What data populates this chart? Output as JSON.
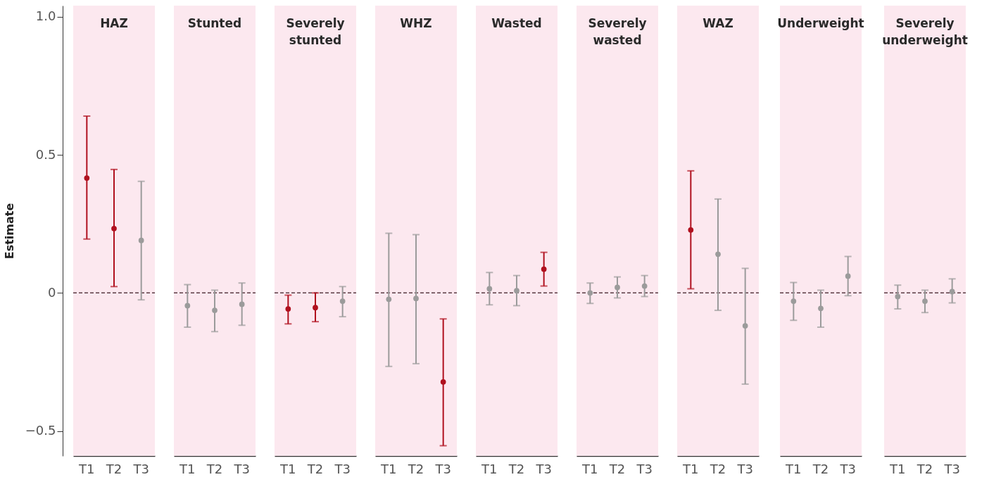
{
  "chart_data": [
    {
      "type": "scatter",
      "title": "HAZ",
      "ylabel": "Estimate",
      "categories": [
        "T1",
        "T2",
        "T3"
      ],
      "marker": "circle",
      "grid": false,
      "ylim": [
        -0.59,
        1.04
      ],
      "yticks": [
        {
          "value": 1,
          "label": "1.0"
        },
        0.5,
        0,
        {
          "value": -0.5,
          "label": "−0.5"
        }
      ],
      "series": [
        {
          "values": [
            0.416,
            0.233,
            0.19
          ],
          "errors": [
            [
              0.195,
              0.64
            ],
            [
              0.023,
              0.447
            ],
            [
              -0.025,
              0.404
            ]
          ],
          "colors": [
            "#b0101e",
            "#b0101e",
            "#9b9b9b"
          ]
        }
      ],
      "ref_lines": [
        {
          "axis": "y",
          "value": 0,
          "color": "#5a3a44",
          "line_style": "dashed"
        }
      ],
      "bands": [
        {
          "axis": "y",
          "from": -0.59,
          "to": 1.04,
          "color": "#fce8ef"
        }
      ]
    },
    {
      "type": "scatter",
      "title": "Stunted",
      "categories": [
        "T1",
        "T2",
        "T3"
      ],
      "marker": "circle",
      "grid": false,
      "tick_labels": "x",
      "ylim": [
        -0.59,
        1.04
      ],
      "series": [
        {
          "values": [
            -0.046,
            -0.063,
            -0.041
          ],
          "errors": [
            [
              -0.124,
              0.03
            ],
            [
              -0.14,
              0.01
            ],
            [
              -0.117,
              0.036
            ]
          ],
          "colors": [
            "#9b9b9b",
            "#9b9b9b",
            "#9b9b9b"
          ]
        }
      ],
      "ref_lines": [
        {
          "axis": "y",
          "value": 0,
          "color": "#5a3a44",
          "line_style": "dashed"
        }
      ],
      "bands": [
        {
          "axis": "y",
          "from": -0.59,
          "to": 1.04,
          "color": "#fce8ef"
        }
      ]
    },
    {
      "type": "scatter",
      "title": "Severely stunted",
      "categories": [
        "T1",
        "T2",
        "T3"
      ],
      "marker": "circle",
      "grid": false,
      "tick_labels": "x",
      "ylim": [
        -0.59,
        1.04
      ],
      "series": [
        {
          "values": [
            -0.058,
            -0.053,
            -0.03
          ],
          "errors": [
            [
              -0.112,
              -0.008
            ],
            [
              -0.104,
              0.0
            ],
            [
              -0.086,
              0.023
            ]
          ],
          "colors": [
            "#b0101e",
            "#b0101e",
            "#9b9b9b"
          ]
        }
      ],
      "ref_lines": [
        {
          "axis": "y",
          "value": 0,
          "color": "#5a3a44",
          "line_style": "dashed"
        }
      ],
      "bands": [
        {
          "axis": "y",
          "from": -0.59,
          "to": 1.04,
          "color": "#fce8ef"
        }
      ]
    },
    {
      "type": "scatter",
      "title": "WHZ",
      "categories": [
        "T1",
        "T2",
        "T3"
      ],
      "marker": "circle",
      "grid": false,
      "tick_labels": "x",
      "ylim": [
        -0.59,
        1.04
      ],
      "series": [
        {
          "values": [
            -0.023,
            -0.02,
            -0.322
          ],
          "errors": [
            [
              -0.266,
              0.216
            ],
            [
              -0.256,
              0.211
            ],
            [
              -0.553,
              -0.094
            ]
          ],
          "colors": [
            "#9b9b9b",
            "#9b9b9b",
            "#b0101e"
          ]
        }
      ],
      "ref_lines": [
        {
          "axis": "y",
          "value": 0,
          "color": "#5a3a44",
          "line_style": "dashed"
        }
      ],
      "bands": [
        {
          "axis": "y",
          "from": -0.59,
          "to": 1.04,
          "color": "#fce8ef"
        }
      ]
    },
    {
      "type": "scatter",
      "title": "Wasted",
      "categories": [
        "T1",
        "T2",
        "T3"
      ],
      "marker": "circle",
      "grid": false,
      "tick_labels": "x",
      "ylim": [
        -0.59,
        1.04
      ],
      "series": [
        {
          "values": [
            0.015,
            0.008,
            0.086
          ],
          "errors": [
            [
              -0.043,
              0.074
            ],
            [
              -0.046,
              0.063
            ],
            [
              0.025,
              0.147
            ]
          ],
          "colors": [
            "#9b9b9b",
            "#9b9b9b",
            "#b0101e"
          ]
        }
      ],
      "ref_lines": [
        {
          "axis": "y",
          "value": 0,
          "color": "#5a3a44",
          "line_style": "dashed"
        }
      ],
      "bands": [
        {
          "axis": "y",
          "from": -0.59,
          "to": 1.04,
          "color": "#fce8ef"
        }
      ]
    },
    {
      "type": "scatter",
      "title": "Severely wasted",
      "categories": [
        "T1",
        "T2",
        "T3"
      ],
      "marker": "circle",
      "grid": false,
      "tick_labels": "x",
      "ylim": [
        -0.59,
        1.04
      ],
      "series": [
        {
          "values": [
            0.0,
            0.02,
            0.025
          ],
          "errors": [
            [
              -0.038,
              0.036
            ],
            [
              -0.018,
              0.058
            ],
            [
              -0.013,
              0.063
            ]
          ],
          "colors": [
            "#9b9b9b",
            "#9b9b9b",
            "#9b9b9b"
          ]
        }
      ],
      "ref_lines": [
        {
          "axis": "y",
          "value": 0,
          "color": "#5a3a44",
          "line_style": "dashed"
        }
      ],
      "bands": [
        {
          "axis": "y",
          "from": -0.59,
          "to": 1.04,
          "color": "#fce8ef"
        }
      ]
    },
    {
      "type": "scatter",
      "title": "WAZ",
      "categories": [
        "T1",
        "T2",
        "T3"
      ],
      "marker": "circle",
      "grid": false,
      "tick_labels": "x",
      "ylim": [
        -0.59,
        1.04
      ],
      "series": [
        {
          "values": [
            0.228,
            0.14,
            -0.119
          ],
          "errors": [
            [
              0.015,
              0.442
            ],
            [
              -0.063,
              0.34
            ],
            [
              -0.33,
              0.089
            ]
          ],
          "colors": [
            "#b0101e",
            "#9b9b9b",
            "#9b9b9b"
          ]
        }
      ],
      "ref_lines": [
        {
          "axis": "y",
          "value": 0,
          "color": "#5a3a44",
          "line_style": "dashed"
        }
      ],
      "bands": [
        {
          "axis": "y",
          "from": -0.59,
          "to": 1.04,
          "color": "#fce8ef"
        }
      ]
    },
    {
      "type": "scatter",
      "title": "Underweight",
      "categories": [
        "T1",
        "T2",
        "T3"
      ],
      "marker": "circle",
      "grid": false,
      "tick_labels": "x",
      "ylim": [
        -0.59,
        1.04
      ],
      "series": [
        {
          "values": [
            -0.03,
            -0.056,
            0.061
          ],
          "errors": [
            [
              -0.099,
              0.038
            ],
            [
              -0.124,
              0.01
            ],
            [
              -0.01,
              0.132
            ]
          ],
          "colors": [
            "#9b9b9b",
            "#9b9b9b",
            "#9b9b9b"
          ]
        }
      ],
      "ref_lines": [
        {
          "axis": "y",
          "value": 0,
          "color": "#5a3a44",
          "line_style": "dashed"
        }
      ],
      "bands": [
        {
          "axis": "y",
          "from": -0.59,
          "to": 1.04,
          "color": "#fce8ef"
        }
      ]
    },
    {
      "type": "scatter",
      "title": "Severely underweight",
      "categories": [
        "T1",
        "T2",
        "T3"
      ],
      "marker": "circle",
      "grid": false,
      "tick_labels": "x",
      "ylim": [
        -0.59,
        1.04
      ],
      "series": [
        {
          "values": [
            -0.013,
            -0.03,
            0.005
          ],
          "errors": [
            [
              -0.058,
              0.028
            ],
            [
              -0.071,
              0.01
            ],
            [
              -0.036,
              0.051
            ]
          ],
          "colors": [
            "#9b9b9b",
            "#9b9b9b",
            "#9b9b9b"
          ]
        }
      ],
      "ref_lines": [
        {
          "axis": "y",
          "value": 0,
          "color": "#5a3a44",
          "line_style": "dashed"
        }
      ],
      "bands": [
        {
          "axis": "y",
          "from": -0.59,
          "to": 1.04,
          "color": "#fce8ef"
        }
      ]
    }
  ]
}
